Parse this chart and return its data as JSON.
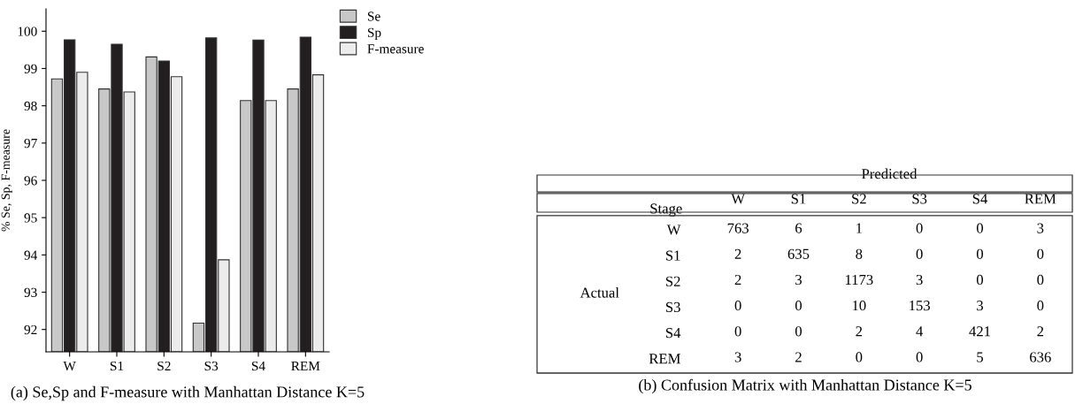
{
  "chart_data": [
    {
      "type": "bar",
      "title": "(a) Se,Sp and F-measure with Manhattan Distance K=5",
      "ylabel": "% Se, Sp, F-measure",
      "categories": [
        "W",
        "S1",
        "S2",
        "S3",
        "S4",
        "REM"
      ],
      "series": [
        {
          "name": "Se",
          "color": "#c8c8c8",
          "values": [
            98.72,
            98.45,
            99.31,
            92.17,
            98.14,
            98.45
          ]
        },
        {
          "name": "Sp",
          "color": "#231f20",
          "values": [
            99.77,
            99.65,
            99.2,
            99.82,
            99.76,
            99.84
          ]
        },
        {
          "name": "F-measure",
          "color": "#ececec",
          "values": [
            98.9,
            98.37,
            98.78,
            93.87,
            98.14,
            98.83
          ]
        }
      ],
      "ylim": [
        91.4,
        100.6
      ],
      "yticks": [
        92,
        93,
        94,
        95,
        96,
        97,
        98,
        99,
        100
      ],
      "grid": false,
      "legend": "top right"
    },
    {
      "type": "heatmap",
      "title": "(b) Confusion Matrix with Manhattan Distance K=5",
      "xlabel": "Predicted",
      "ylabel": "Actual",
      "annotations": [
        "Stage"
      ],
      "categories": [
        "W",
        "S1",
        "S2",
        "S3",
        "S4",
        "REM"
      ],
      "y_categories": [
        "W",
        "S1",
        "S2",
        "S3",
        "S4",
        "REM"
      ],
      "cells": [
        [
          763,
          6,
          1,
          0,
          0,
          3
        ],
        [
          2,
          635,
          8,
          0,
          0,
          0
        ],
        [
          2,
          3,
          1173,
          3,
          0,
          0
        ],
        [
          0,
          0,
          10,
          153,
          3,
          0
        ],
        [
          0,
          0,
          2,
          4,
          421,
          2
        ],
        [
          3,
          2,
          0,
          0,
          5,
          636
        ]
      ],
      "data_labels": true
    }
  ]
}
